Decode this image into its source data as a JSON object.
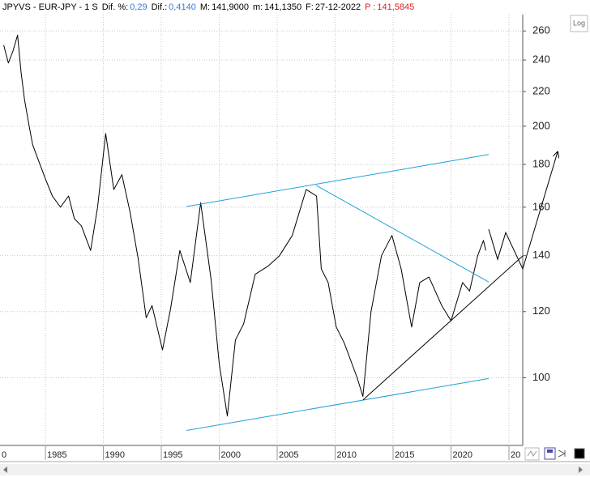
{
  "header": [
    {
      "label": "JPYVS - EUR-JPY - 1 S",
      "color": "#000000"
    },
    {
      "label": "Dif. %:",
      "value": "0,29",
      "color": "#000000",
      "value_color": "#3c78d0"
    },
    {
      "label": "Dif.:",
      "value": "0,4140",
      "color": "#000000",
      "value_color": "#3c78d0"
    },
    {
      "label": "M:",
      "value": "141,9000",
      "color": "#000000",
      "value_color": "#000000"
    },
    {
      "label": "m:",
      "value": "141,1350",
      "color": "#000000",
      "value_color": "#000000"
    },
    {
      "label": "F:",
      "value": "27-12-2022",
      "color": "#000000",
      "value_color": "#000000"
    },
    {
      "label": "P :",
      "value": "141,5845",
      "color": "#e02020",
      "value_color": "#e02020"
    }
  ],
  "log_button": "Log",
  "chart_data": {
    "type": "line",
    "log_scale": true,
    "grid": true,
    "xlim": [
      1981.08,
      2026.19
    ],
    "ylim": [
      83,
      272
    ],
    "xticks": [
      {
        "value": 1980,
        "label": "0"
      },
      1985,
      1990,
      1995,
      2000,
      2005,
      2010,
      2015,
      2020,
      {
        "value": 2025,
        "label": "20"
      }
    ],
    "yticks": [
      100,
      120,
      140,
      160,
      180,
      200,
      220,
      240,
      260
    ],
    "series": [
      {
        "name": "EUR-JPY",
        "color": "#000000",
        "x": [
          1981.4,
          1981.8,
          1982.2,
          1982.6,
          1982.9,
          1983.2,
          1983.6,
          1983.9,
          1984.4,
          1985.0,
          1985.6,
          1986.3,
          1987.0,
          1987.5,
          1988.1,
          1988.9,
          1989.5,
          1990.2,
          1990.9,
          1991.6,
          1992.3,
          1993.0,
          1993.7,
          1994.2,
          1995.1,
          1995.8,
          1996.6,
          1997.5,
          1998.4,
          1999.3,
          2000.0,
          2000.7,
          2001.4,
          2002.1,
          2003.1,
          2004.2,
          2005.2,
          2006.3,
          2007.5,
          2008.4,
          2008.8,
          2009.4,
          2010.1,
          2010.8,
          2011.9,
          2012.4,
          2013.1,
          2014.0,
          2014.9,
          2015.7,
          2016.6,
          2017.3,
          2018.1,
          2019.2,
          2020.0,
          2021.0,
          2021.6,
          2022.3,
          2022.8,
          2023.0
        ],
        "values": [
          250,
          238,
          246,
          257,
          232,
          215,
          200,
          190,
          182,
          173,
          165,
          160,
          165,
          155,
          152,
          142,
          160,
          196,
          168,
          175,
          158,
          139,
          118,
          122,
          108,
          121,
          142,
          130,
          162,
          131,
          104,
          90,
          111,
          116,
          133,
          136,
          140,
          148,
          168,
          165,
          135,
          130,
          115,
          110,
          100,
          95,
          120,
          140,
          148,
          135,
          115,
          130,
          132,
          122,
          117,
          130,
          127,
          140,
          146,
          142
        ]
      }
    ],
    "trendlines": [
      {
        "color": "#1fa3d6",
        "x": [
          1997.17,
          2023.25
        ],
        "y": [
          160.3,
          185.0
        ]
      },
      {
        "color": "#1fa3d6",
        "x": [
          1997.17,
          2023.25
        ],
        "y": [
          86.5,
          99.8
        ]
      },
      {
        "color": "#1fa3d6",
        "x": [
          2008.36,
          2023.25
        ],
        "y": [
          169.9,
          130.2
        ]
      },
      {
        "color": "#000000",
        "x": [
          2012.41,
          2026.19
        ],
        "y": [
          94.1,
          139.9
        ]
      },
      {
        "color": "#000000",
        "arrow": true,
        "x": [
          2023.25,
          2024.02,
          2024.72,
          2026.19,
          2029.2
        ],
        "y": [
          150.6,
          138.6,
          149.2,
          135.0,
          186.3
        ]
      }
    ]
  }
}
